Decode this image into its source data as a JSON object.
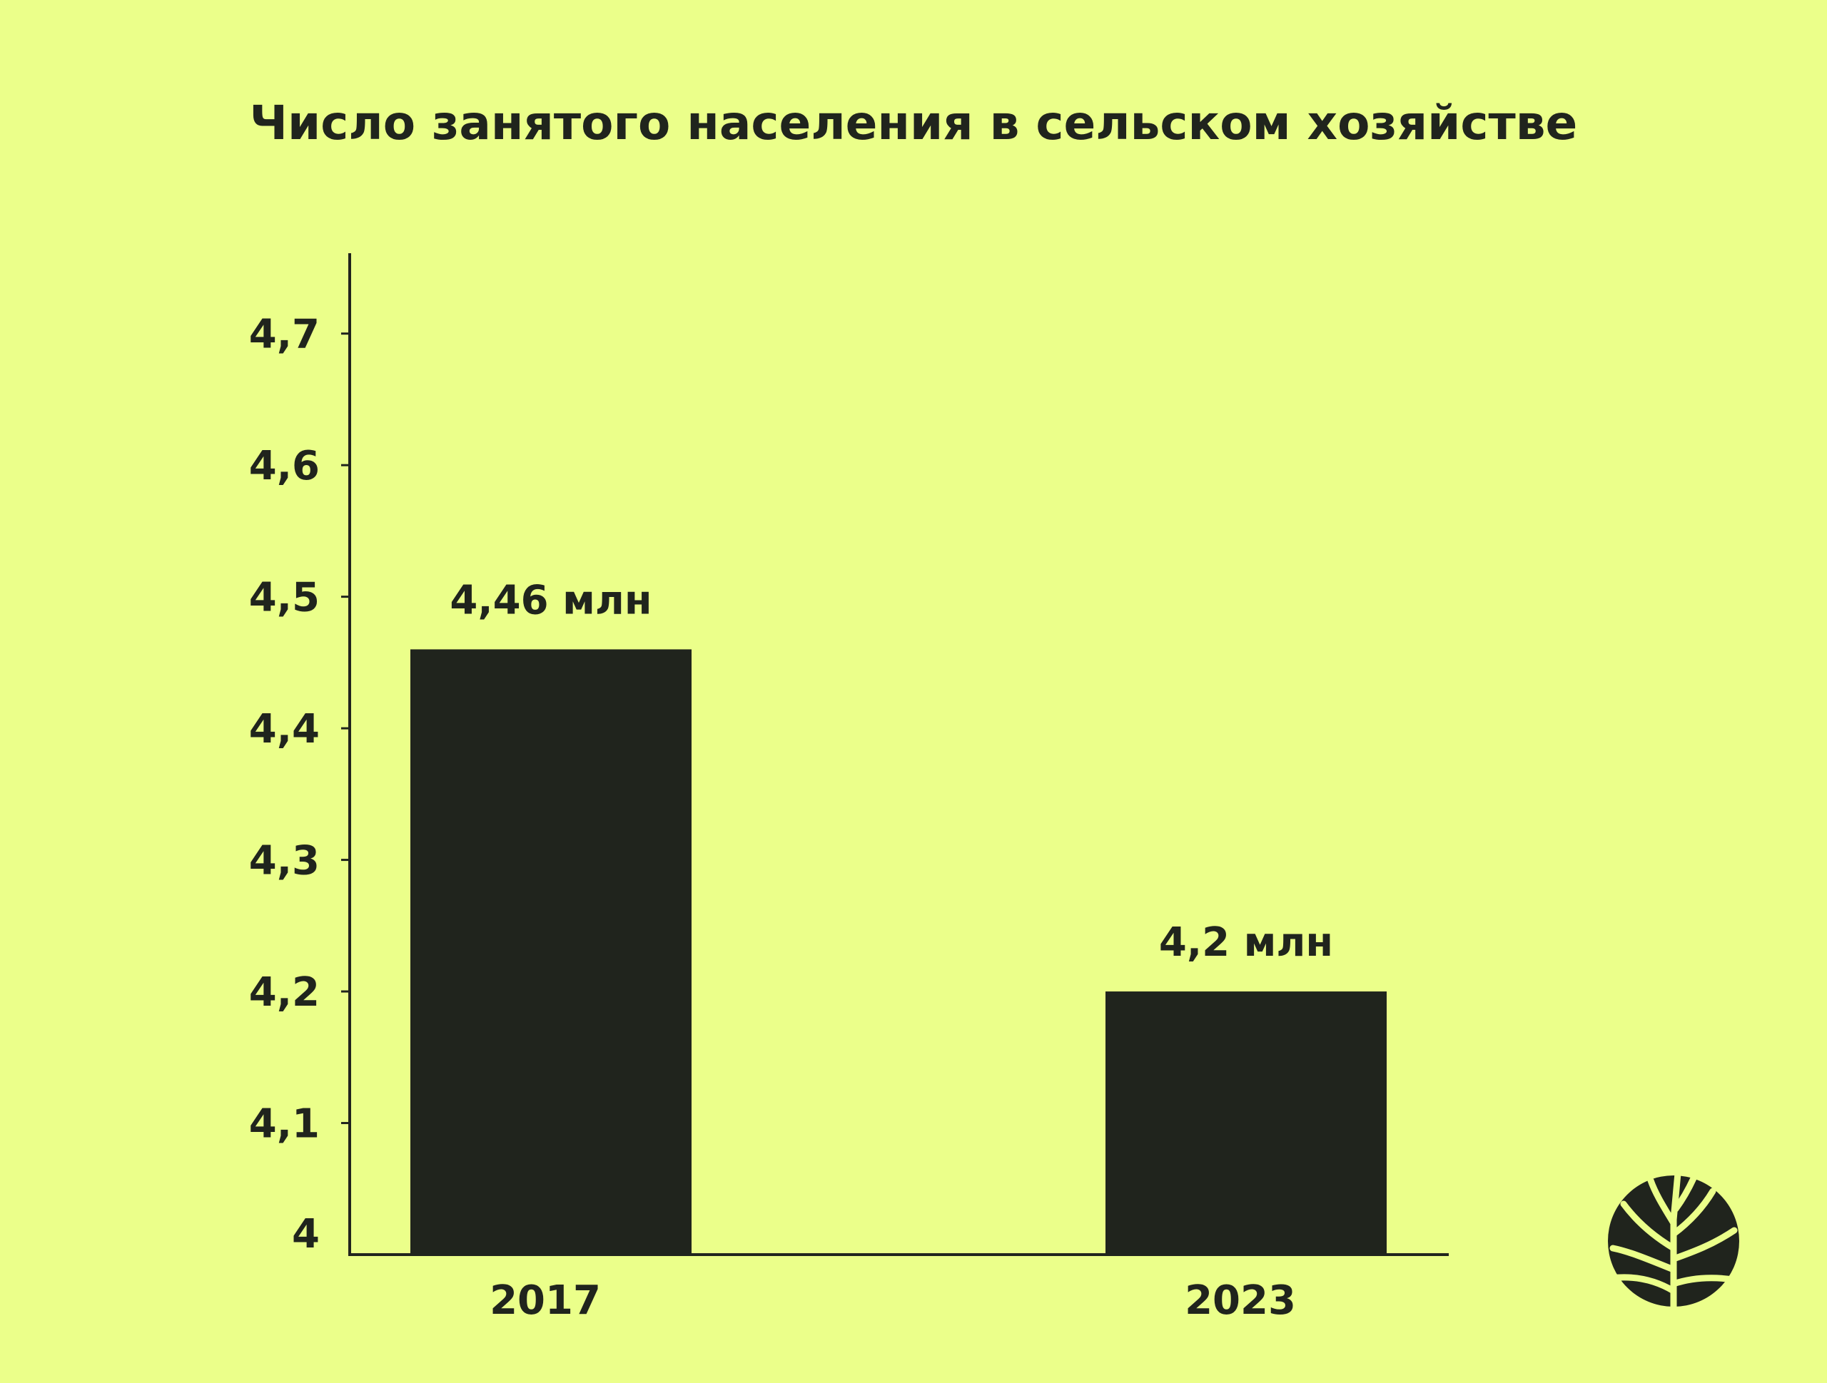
{
  "colors": {
    "background": "#ebff8a",
    "bar": "#20241d",
    "text": "#20241d"
  },
  "chart_data": {
    "type": "bar",
    "title": "Число занятого населения в сельском хозяйстве",
    "xlabel": "",
    "ylabel": "",
    "categories": [
      "2017",
      "2023"
    ],
    "values": [
      4.46,
      4.2
    ],
    "data_labels": [
      "4,46 млн",
      "4,2 млн"
    ],
    "ylim": [
      4,
      4.76
    ],
    "yticks": [
      4,
      4.1,
      4.2,
      4.3,
      4.4,
      4.5,
      4.6,
      4.7
    ],
    "ytick_labels": [
      "4",
      "4,1",
      "4,2",
      "4,3",
      "4,4",
      "4,5",
      "4,6",
      "4,7"
    ],
    "grid": false,
    "legend": "none"
  },
  "logo": {
    "icon": "tree-leaf-logo-icon"
  }
}
